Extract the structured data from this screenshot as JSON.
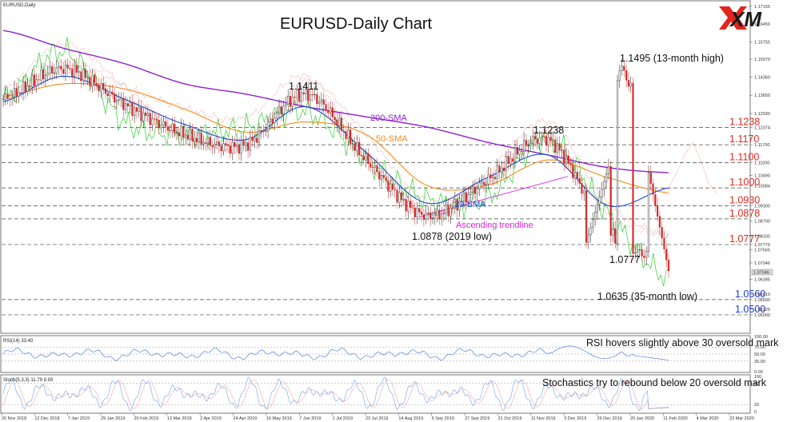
{
  "header": {
    "symbol_label": "EURUSD,Daily",
    "title": "EURUSD-Daily Chart",
    "logo_text": "XM"
  },
  "chart_data": {
    "type": "line",
    "title": "EURUSD-Daily Chart",
    "x": [
      "20 Nov 2018",
      "7 Jan 2019",
      "20 Feb 2019",
      "2 Apr 2019",
      "16 May 2019",
      "1 Jul 2019",
      "13 Aug 2019",
      "27 Sep 2019",
      "11 Nov 2019",
      "26 Dec 2019",
      "11 Feb 2020",
      "23 Mar 2020"
    ],
    "series": [
      {
        "name": "Price",
        "values": [
          1.135,
          1.147,
          1.133,
          1.121,
          1.117,
          1.137,
          1.111,
          1.089,
          1.103,
          1.119,
          1.083,
          1.071
        ]
      },
      {
        "name": "200-SMA",
        "values": [
          1.162,
          1.155,
          1.149,
          1.141,
          1.137,
          1.132,
          1.128,
          1.124,
          1.118,
          1.113,
          1.108,
          1.106
        ]
      },
      {
        "name": "50-SMA",
        "values": [
          1.136,
          1.141,
          1.139,
          1.131,
          1.122,
          1.126,
          1.121,
          1.101,
          1.101,
          1.111,
          1.104,
          1.098
        ]
      },
      {
        "name": "20-SMA",
        "values": [
          1.134,
          1.144,
          1.135,
          1.125,
          1.119,
          1.132,
          1.114,
          1.094,
          1.104,
          1.113,
          1.093,
          1.1
        ]
      }
    ],
    "ylim": [
      1.0462,
      1.1715
    ],
    "price_axis_ticks": [
      "1.17155",
      "1.16450",
      "1.15755",
      "1.15070",
      "1.14360",
      "1.13650",
      "1.12930",
      "1.12374",
      "1.11700",
      "1.11000",
      "1.10490",
      "1.10084",
      "1.09300",
      "1.08700",
      "1.08100",
      "1.07770",
      "1.07565",
      "1.07046",
      "1.06395",
      "1.05810",
      "1.05600",
      "1.05225",
      "1.05000"
    ],
    "time_axis_ticks": [
      "20 Nov 2018",
      "12 Dec 2018",
      "7 Jan 2019",
      "29 Jan 2019",
      "20 Feb 2019",
      "13 Mar 2019",
      "2 Apr 2019",
      "24 Apr 2019",
      "16 May 2019",
      "7 Jun 2019",
      "1 Jul 2019",
      "23 Jul 2019",
      "14 Aug 2019",
      "5 Sep 2019",
      "27 Sep 2019",
      "21 Oct 2019",
      "11 Nov 2019",
      "3 Dec 2019",
      "26 Dec 2019",
      "20 Jan 2020",
      "11 Feb 2020",
      "4 Mar 2020",
      "23 Mar 2020"
    ],
    "levels": [
      {
        "label": "1.1238",
        "value": 1.1238,
        "color": "#e3261b"
      },
      {
        "label": "1.1170",
        "value": 1.117,
        "color": "#e3261b"
      },
      {
        "label": "1.1100",
        "value": 1.11,
        "color": "#e3261b"
      },
      {
        "label": "1.1000",
        "value": 1.1,
        "color": "#e3261b"
      },
      {
        "label": "1.0930",
        "value": 1.093,
        "color": "#e3261b"
      },
      {
        "label": "1.0878",
        "value": 1.0878,
        "color": "#e3261b"
      },
      {
        "label": "1.0777",
        "value": 1.0777,
        "color": "#e3261b"
      },
      {
        "label": "1.0560",
        "value": 1.056,
        "color": "#1f3bd6"
      },
      {
        "label": "1.0500",
        "value": 1.05,
        "color": "#1f3bd6"
      }
    ],
    "current_price_tag": "1.07046",
    "annotations": {
      "high_2019": "1.1411",
      "high_13m": "1.1495 (13-month high)",
      "dec_high": "1.1238",
      "low_2019": "1.0878 (2019 low)",
      "feb_low": "1.0777",
      "low_35m": "1.0635 (35-month low)",
      "sma200": "200-SMA",
      "sma50": "50-SMA",
      "sma20": "20-SMA",
      "trendline": "Ascending trendline"
    },
    "colors": {
      "sma200": "#8e1fd1",
      "sma50": "#f28c1a",
      "sma20": "#1e4bd8",
      "bull": "#1a1a1a",
      "bear": "#d12a2a",
      "ichimoku_green": "#2fd12f",
      "cloud": "#e37a7a",
      "trendline": "#e020e0"
    }
  },
  "rsi_panel": {
    "label": "RSI(14) 33.40",
    "value": 33.4,
    "commentary": "RSI hovers slightly above 30 oversold mark",
    "ticks": [
      "100.00",
      "70.00",
      "50.00",
      "30.00",
      "0.00"
    ]
  },
  "stoch_panel": {
    "label": "Stoch(5,3,3) 11.79 9.93",
    "k_value": 11.79,
    "d_value": 9.93,
    "commentary": "Stochastics try to rebound below 20 oversold mark",
    "ticks": [
      "100",
      "80",
      "20",
      "0"
    ]
  }
}
